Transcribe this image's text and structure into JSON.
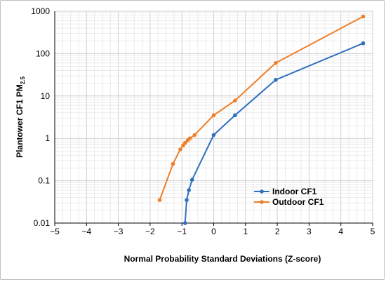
{
  "chart_data": {
    "type": "line",
    "title": "",
    "xlabel": "Normal Probability Standard Deviations (Z-score)",
    "ylabel": {
      "main": "Plantower CF1 PM",
      "sub": "2.5"
    },
    "xlim": [
      -5,
      5
    ],
    "ylim": [
      0.01,
      1000
    ],
    "yscale": "log",
    "grid": "on",
    "legend_position": "lower-right",
    "x_ticks": [
      "−5",
      "−4",
      "−3",
      "−2",
      "−1",
      "0",
      "1",
      "2",
      "3",
      "4",
      "5"
    ],
    "y_ticks": [
      "0.01",
      "0.1",
      "1",
      "10",
      "100",
      "1000"
    ],
    "series": [
      {
        "name": "Indoor CF1",
        "color": "#2e6fc0",
        "points": [
          {
            "x": -0.9,
            "y": 0.01
          },
          {
            "x": -0.85,
            "y": 0.035
          },
          {
            "x": -0.78,
            "y": 0.06
          },
          {
            "x": -0.68,
            "y": 0.105
          },
          {
            "x": 0.0,
            "y": 1.2
          },
          {
            "x": 0.67,
            "y": 3.5
          },
          {
            "x": 1.95,
            "y": 24
          },
          {
            "x": 4.7,
            "y": 175
          }
        ]
      },
      {
        "name": "Outdoor CF1",
        "color": "#f07e26",
        "points": [
          {
            "x": -1.7,
            "y": 0.035
          },
          {
            "x": -1.28,
            "y": 0.25
          },
          {
            "x": -1.05,
            "y": 0.55
          },
          {
            "x": -0.96,
            "y": 0.68
          },
          {
            "x": -0.9,
            "y": 0.78
          },
          {
            "x": -0.82,
            "y": 0.9
          },
          {
            "x": -0.75,
            "y": 1.0
          },
          {
            "x": -0.6,
            "y": 1.2
          },
          {
            "x": 0.0,
            "y": 3.5
          },
          {
            "x": 0.67,
            "y": 7.8
          },
          {
            "x": 1.95,
            "y": 60
          },
          {
            "x": 4.7,
            "y": 750
          }
        ]
      }
    ]
  }
}
